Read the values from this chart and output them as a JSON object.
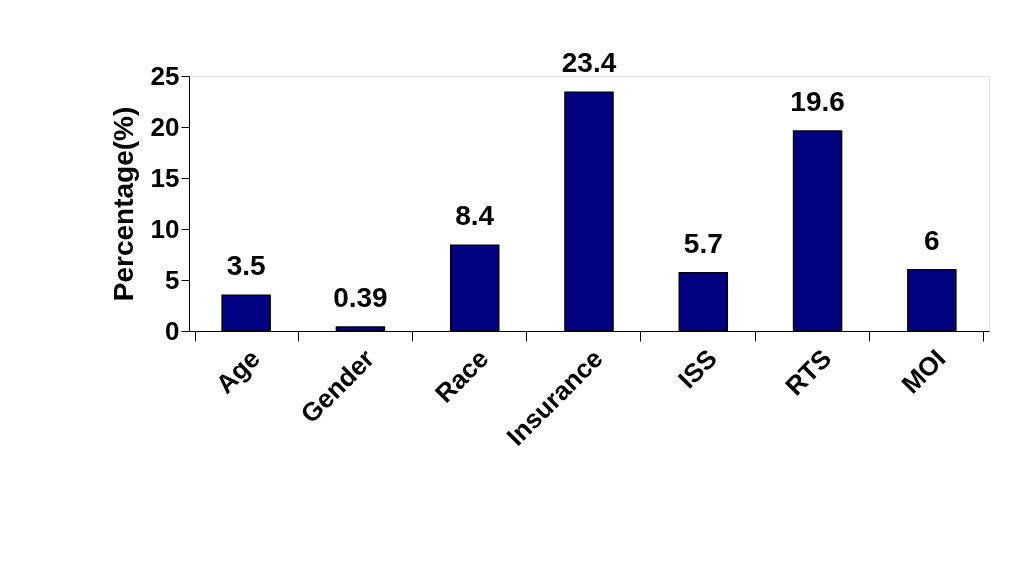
{
  "chart_data": {
    "type": "bar",
    "ylabel": "Percentage(%)",
    "categories": [
      "Age",
      "Gender",
      "Race",
      "Insurance",
      "ISS",
      "RTS",
      "MOI"
    ],
    "values": [
      3.5,
      0.39,
      8.4,
      23.4,
      5.7,
      19.6,
      6
    ],
    "color": "#000080",
    "ylim": [
      0,
      25
    ],
    "yticks": [
      0,
      5,
      10,
      15,
      20,
      25
    ],
    "data_labels": true,
    "grid": false
  }
}
